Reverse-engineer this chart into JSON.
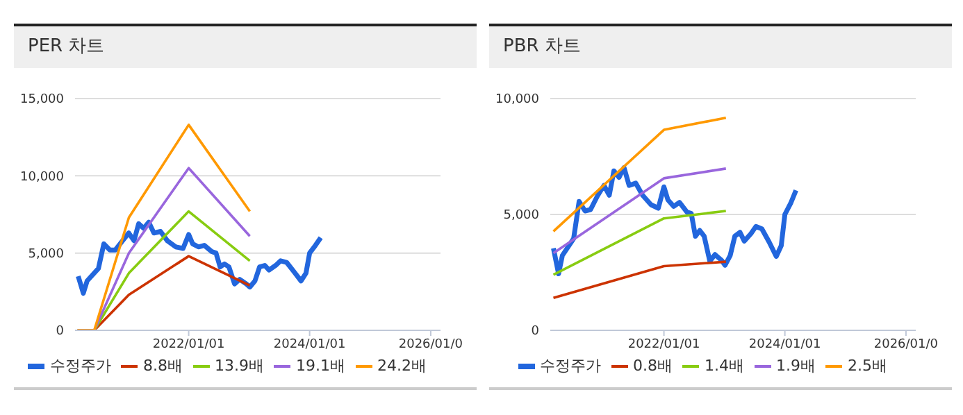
{
  "chart_data": [
    {
      "type": "line",
      "title": "PER 차트",
      "xlim": [
        "2020-02-15",
        "2026-03-01"
      ],
      "xticks": [
        {
          "value": "2022-01-01",
          "label": "2022/01/01"
        },
        {
          "value": "2024-01-01",
          "label": "2024/01/01"
        },
        {
          "value": "2026-01-01",
          "label": "2026/01/0"
        }
      ],
      "ylim": [
        0,
        15000
      ],
      "yticks": [
        0,
        {
          "value": 5000,
          "label": "5,000"
        },
        {
          "value": 10000,
          "label": "10,000"
        },
        {
          "value": 15000,
          "label": "15,000"
        }
      ],
      "grid": "y",
      "legend": "bottom",
      "marker": "none",
      "line_style": "solid",
      "series": [
        {
          "name": "수정주가",
          "color": "#2266dd",
          "x": [
            "2020-03-05",
            "2020-04-05",
            "2020-04-28",
            "2020-07-05",
            "2020-08-07",
            "2020-09-12",
            "2020-10-15",
            "2020-11-28",
            "2021-01-04",
            "2021-02-05",
            "2021-03-05",
            "2021-04-05",
            "2021-05-05",
            "2021-06-05",
            "2021-07-15",
            "2021-08-25",
            "2021-10-15",
            "2021-11-28",
            "2022-01-01",
            "2022-01-25",
            "2022-03-01",
            "2022-04-05",
            "2022-05-20",
            "2022-06-15",
            "2022-07-10",
            "2022-08-05",
            "2022-09-01",
            "2022-10-05",
            "2022-11-05",
            "2022-12-15",
            "2023-01-05",
            "2023-02-05",
            "2023-03-05",
            "2023-04-05",
            "2023-05-01",
            "2023-06-10",
            "2023-07-10",
            "2023-08-15",
            "2023-09-28",
            "2023-11-10",
            "2023-12-10",
            "2024-01-01",
            "2024-02-05",
            "2024-03-08"
          ],
          "values": [
            3500,
            2400,
            3200,
            4000,
            5600,
            5200,
            5200,
            5800,
            6300,
            5800,
            6900,
            6600,
            7000,
            6300,
            6400,
            5800,
            5400,
            5300,
            6200,
            5600,
            5400,
            5500,
            5100,
            5000,
            4100,
            4300,
            4100,
            3000,
            3300,
            3000,
            2800,
            3200,
            4100,
            4200,
            3900,
            4200,
            4500,
            4400,
            3800,
            3200,
            3700,
            5000,
            5500,
            6000
          ]
        },
        {
          "name": "8.8배",
          "color": "#cc3300",
          "x": [
            "2020-03-01",
            "2020-06-10",
            "2021-01-05",
            "2022-01-01",
            "2023-01-05"
          ],
          "values": [
            0,
            0,
            2300,
            4800,
            2900
          ]
        },
        {
          "name": "13.9배",
          "color": "#88cc11",
          "x": [
            "2020-03-01",
            "2020-06-10",
            "2021-01-05",
            "2022-01-01",
            "2023-01-05"
          ],
          "values": [
            0,
            0,
            3700,
            7700,
            4500
          ]
        },
        {
          "name": "19.1배",
          "color": "#9966dd",
          "x": [
            "2020-03-01",
            "2020-06-10",
            "2021-01-05",
            "2022-01-01",
            "2023-01-05"
          ],
          "values": [
            0,
            0,
            5000,
            10500,
            6100
          ]
        },
        {
          "name": "24.2배",
          "color": "#ff9900",
          "x": [
            "2020-03-01",
            "2020-06-10",
            "2021-01-05",
            "2022-01-01",
            "2023-01-05"
          ],
          "values": [
            0,
            0,
            7300,
            13300,
            7700
          ]
        }
      ]
    },
    {
      "type": "line",
      "title": "PBR 차트",
      "xlim": [
        "2020-02-15",
        "2026-03-01"
      ],
      "xticks": [
        {
          "value": "2022-01-01",
          "label": "2022/01/01"
        },
        {
          "value": "2024-01-01",
          "label": "2024/01/01"
        },
        {
          "value": "2026-01-01",
          "label": "2026/01/0"
        }
      ],
      "ylim": [
        0,
        10000
      ],
      "yticks": [
        0,
        {
          "value": 5000,
          "label": "5,000"
        },
        {
          "value": 10000,
          "label": "10,000"
        }
      ],
      "grid": "y",
      "legend": "bottom",
      "marker": "none",
      "line_style": "solid",
      "series": [
        {
          "name": "수정주가",
          "color": "#2266dd",
          "x": [
            "2020-03-05",
            "2020-04-05",
            "2020-04-28",
            "2020-07-05",
            "2020-08-07",
            "2020-09-12",
            "2020-10-15",
            "2020-11-28",
            "2021-01-04",
            "2021-02-05",
            "2021-03-05",
            "2021-04-05",
            "2021-05-05",
            "2021-06-05",
            "2021-07-15",
            "2021-08-25",
            "2021-10-15",
            "2021-11-28",
            "2022-01-01",
            "2022-01-25",
            "2022-03-01",
            "2022-04-05",
            "2022-05-20",
            "2022-06-15",
            "2022-07-10",
            "2022-08-05",
            "2022-09-01",
            "2022-10-05",
            "2022-11-05",
            "2022-12-15",
            "2023-01-05",
            "2023-02-05",
            "2023-03-05",
            "2023-04-05",
            "2023-05-01",
            "2023-06-10",
            "2023-07-10",
            "2023-08-15",
            "2023-09-28",
            "2023-11-10",
            "2023-12-10",
            "2024-01-01",
            "2024-02-05",
            "2024-03-08"
          ],
          "values": [
            3540,
            2440,
            3230,
            3960,
            5560,
            5150,
            5210,
            5830,
            6250,
            5830,
            6880,
            6600,
            7020,
            6250,
            6350,
            5830,
            5420,
            5270,
            6190,
            5630,
            5350,
            5520,
            5100,
            5040,
            4060,
            4310,
            4060,
            2980,
            3270,
            3020,
            2810,
            3230,
            4060,
            4230,
            3850,
            4170,
            4480,
            4380,
            3810,
            3190,
            3650,
            5000,
            5480,
            6040
          ]
        },
        {
          "name": "0.8배",
          "color": "#cc3300",
          "x": [
            "2020-03-05",
            "2022-01-01",
            "2023-01-10"
          ],
          "values": [
            1400,
            2770,
            2960
          ]
        },
        {
          "name": "1.4배",
          "color": "#88cc11",
          "x": [
            "2020-03-05",
            "2022-01-01",
            "2023-01-10"
          ],
          "values": [
            2400,
            4830,
            5150
          ]
        },
        {
          "name": "1.9배",
          "color": "#9966dd",
          "x": [
            "2020-03-05",
            "2022-01-01",
            "2023-01-10"
          ],
          "values": [
            3330,
            6560,
            6980
          ]
        },
        {
          "name": "2.5배",
          "color": "#ff9900",
          "x": [
            "2020-03-05",
            "2022-01-01",
            "2023-01-10"
          ],
          "values": [
            4270,
            8650,
            9170
          ]
        }
      ]
    }
  ]
}
